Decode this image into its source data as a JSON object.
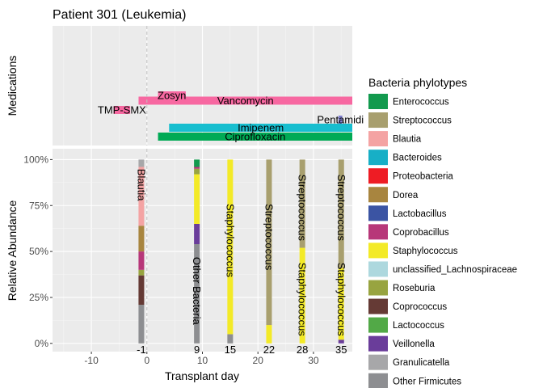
{
  "chart_data": {
    "title": "Patient 301 (Leukemia)",
    "xlabel": "Transplant day",
    "xlim": [
      -17,
      37
    ],
    "x_ticks": [
      -10,
      0,
      10,
      20,
      30
    ],
    "vline_x": 0,
    "medications_panel": {
      "ylabel": "Medications",
      "type": "timeline",
      "items": [
        {
          "name": "Zosyn",
          "start": 2,
          "end": 7,
          "color": "#F768A1"
        },
        {
          "name": "Vancomycin",
          "start": -1.5,
          "end": 37,
          "color": "#F768A1"
        },
        {
          "name": "TMP-SMX",
          "start": -6,
          "end": -3,
          "color": "#F768A1"
        },
        {
          "name": "Pentamidine",
          "start": 34.5,
          "end": 35.2,
          "color": "#7F7FCF",
          "label": "Pentamidi"
        },
        {
          "name": "Imipenem",
          "start": 4,
          "end": 37,
          "color": "#17BECF"
        },
        {
          "name": "Ciprofloxacin",
          "start": 2,
          "end": 37,
          "color": "#00AA55"
        }
      ]
    },
    "abundance_panel": {
      "type": "bar",
      "stacked": true,
      "ylabel": "Relative Abundance",
      "ylim": [
        0,
        1
      ],
      "y_ticks": [
        "0%",
        "25%",
        "50%",
        "75%",
        "100%"
      ],
      "samples": [
        {
          "day": -1,
          "label": "-1",
          "segments": [
            {
              "taxon": "Other Firmicutes",
              "value": 0.21
            },
            {
              "taxon": "Coprococcus",
              "value": 0.16
            },
            {
              "taxon": "Roseburia",
              "value": 0.03
            },
            {
              "taxon": "Coprobacillus",
              "value": 0.1
            },
            {
              "taxon": "Dorea",
              "value": 0.14
            },
            {
              "taxon": "Blautia",
              "value": 0.32
            },
            {
              "taxon": "Granulicatella",
              "value": 0.04
            }
          ]
        },
        {
          "day": 9,
          "label": "9",
          "segments": [
            {
              "taxon": "Other Firmicutes",
              "value": 0.54
            },
            {
              "taxon": "Veillonella",
              "value": 0.11
            },
            {
              "taxon": "Staphylococcus",
              "value": 0.27
            },
            {
              "taxon": "Roseburia",
              "value": 0.03
            },
            {
              "taxon": "Coprobacillus",
              "value": 0.01
            },
            {
              "taxon": "Enterococcus",
              "value": 0.04
            }
          ]
        },
        {
          "day": 15,
          "label": "15",
          "segments": [
            {
              "taxon": "Other Firmicutes",
              "value": 0.05
            },
            {
              "taxon": "Staphylococcus",
              "value": 0.95
            }
          ]
        },
        {
          "day": 22,
          "label": "22",
          "segments": [
            {
              "taxon": "Staphylococcus",
              "value": 0.1
            },
            {
              "taxon": "Streptococcus",
              "value": 0.9
            }
          ]
        },
        {
          "day": 28,
          "label": "28",
          "segments": [
            {
              "taxon": "Staphylococcus",
              "value": 0.52
            },
            {
              "taxon": "Streptococcus",
              "value": 0.48
            }
          ]
        },
        {
          "day": 35,
          "label": "35",
          "segments": [
            {
              "taxon": "Veillonella",
              "value": 0.02
            },
            {
              "taxon": "Staphylococcus",
              "value": 0.39
            },
            {
              "taxon": "Streptococcus",
              "value": 0.59
            }
          ]
        }
      ],
      "bar_labels": [
        {
          "day": -1,
          "text": "Blautia",
          "y": 0.95
        },
        {
          "day": 9,
          "text": "Other Bacteria",
          "y": 0.47
        },
        {
          "day": 15,
          "text": "Staphylococcus",
          "y": 0.76
        },
        {
          "day": 22,
          "text": "Streptococcus",
          "y": 0.76
        },
        {
          "day": 28,
          "text": "Streptococcus",
          "y": 0.92
        },
        {
          "day": 28,
          "text": "Staphylococcus",
          "y": 0.44
        },
        {
          "day": 35,
          "text": "Streptococcus",
          "y": 0.92
        },
        {
          "day": 35,
          "text": "Staphylococcus",
          "y": 0.44
        }
      ]
    },
    "legend": {
      "title": "Bacteria phylotypes",
      "placement": "right",
      "items": [
        {
          "name": "Enterococcus",
          "color": "#129A4E"
        },
        {
          "name": "Streptococcus",
          "color": "#A89F6E"
        },
        {
          "name": "Blautia",
          "color": "#F4A3A3"
        },
        {
          "name": "Bacteroides",
          "color": "#17AFC6"
        },
        {
          "name": "Proteobacteria",
          "color": "#EE1C24"
        },
        {
          "name": "Dorea",
          "color": "#A8853F"
        },
        {
          "name": "Lactobacillus",
          "color": "#3B54A3"
        },
        {
          "name": "Coprobacillus",
          "color": "#B73779"
        },
        {
          "name": "Staphylococcus",
          "color": "#F3EA27"
        },
        {
          "name": "unclassified_Lachnospiraceae",
          "color": "#ADD8DE"
        },
        {
          "name": "Roseburia",
          "color": "#98A440"
        },
        {
          "name": "Coprococcus",
          "color": "#653A35"
        },
        {
          "name": "Lactococcus",
          "color": "#52A947"
        },
        {
          "name": "Veillonella",
          "color": "#6A3D9A"
        },
        {
          "name": "Granulicatella",
          "color": "#A7A7A9"
        },
        {
          "name": "Other Firmicutes",
          "color": "#8D8E91"
        }
      ]
    }
  }
}
